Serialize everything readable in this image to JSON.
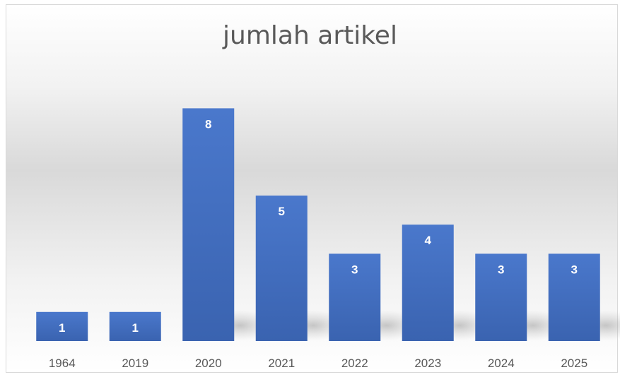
{
  "chart_data": {
    "type": "bar",
    "title": "jumlah artikel",
    "categories": [
      "1964",
      "2019",
      "2020",
      "2021",
      "2022",
      "2023",
      "2024",
      "2025"
    ],
    "values": [
      1,
      1,
      8,
      5,
      3,
      4,
      3,
      3
    ],
    "xlabel": "",
    "ylabel": "",
    "ylim": [
      0,
      8
    ],
    "grid": false,
    "legend": "none",
    "bar_color": "#4472c4",
    "data_labels": true
  }
}
